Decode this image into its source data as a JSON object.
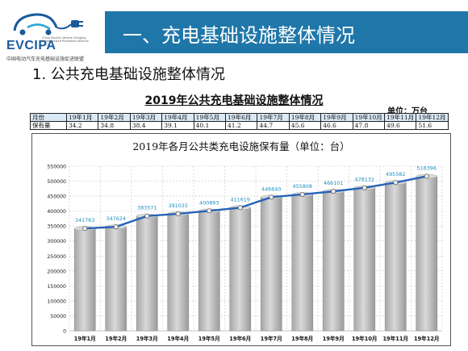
{
  "logo": {
    "name": "EVCIPA",
    "subtitle": "China Electric Vehicle Charging Infrastructure Promotion Alliance",
    "cn_name": "中国电动汽车充电基础设施促进联盟"
  },
  "header": {
    "title": "一、充电基础设施整体情况"
  },
  "section": {
    "title": "1. 公共充电基础设施整体情况"
  },
  "table": {
    "title": "2019年公共充电基础设施整体情况",
    "unit": "单位：万台",
    "row_labels": [
      "月份",
      "保有量"
    ],
    "months": [
      "19年1月",
      "19年2月",
      "19年3月",
      "19年4月",
      "19年5月",
      "19年6月",
      "19年7月",
      "19年8月",
      "19年9月",
      "19年10月",
      "19年11月",
      "19年12月"
    ],
    "values": [
      "34.2",
      "34.8",
      "38.4",
      "39.1",
      "40.1",
      "41.2",
      "44.7",
      "45.6",
      "46.6",
      "47.8",
      "49.6",
      "51.6"
    ]
  },
  "chart_data": {
    "type": "bar",
    "title": "2019年各月公共类充电设施保有量（单位：台）",
    "categories": [
      "19年1月",
      "19年2月",
      "19年3月",
      "19年4月",
      "19年5月",
      "19年6月",
      "19年7月",
      "19年8月",
      "19年9月",
      "19年10月",
      "19年11月",
      "19年12月"
    ],
    "values": [
      341763,
      347624,
      383571,
      391035,
      400893,
      411619,
      446640,
      455808,
      466101,
      478132,
      495582,
      516396
    ],
    "overlay_line": true,
    "y_ticks": [
      "0",
      "50000",
      "100000",
      "150000",
      "200000",
      "250000",
      "300000",
      "350000",
      "400000",
      "450000",
      "500000",
      "550000"
    ],
    "ylim": [
      0,
      550000
    ],
    "grid": true,
    "colors": {
      "bar": "#bfbfbf",
      "bar_top": "#d9d9d9",
      "line": "#2563b8",
      "labels": "#1b8fbf",
      "marker": "#f2f2f2"
    }
  }
}
